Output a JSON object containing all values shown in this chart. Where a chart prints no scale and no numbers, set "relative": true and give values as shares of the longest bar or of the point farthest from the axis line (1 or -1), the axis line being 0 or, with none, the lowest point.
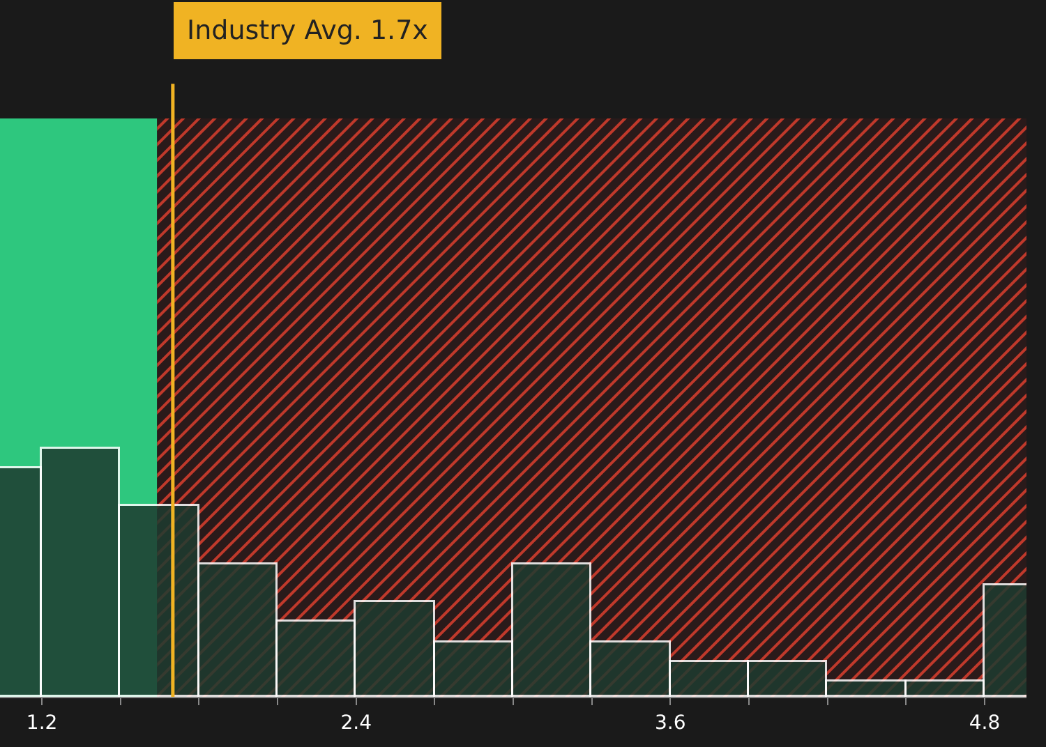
{
  "chart_data": {
    "type": "bar",
    "relative": true,
    "color": "#1e3b30",
    "x": [
      1.05,
      1.35,
      1.65,
      1.95,
      2.25,
      2.55,
      2.85,
      3.15,
      3.45,
      3.75,
      4.05,
      4.35,
      4.65,
      4.95
    ],
    "values": [
      0.92,
      1,
      0.77,
      0.53,
      0.3,
      0.38,
      0.22,
      0.53,
      0.22,
      0.14,
      0.14,
      0.06,
      0.06,
      0.45
    ],
    "xlim": [
      1.04,
      4.96
    ],
    "xticks": [
      1.2,
      {
        "value": 1.5,
        "label": null
      },
      {
        "value": 1.8,
        "label": null
      },
      {
        "value": 2.1,
        "label": null
      },
      2.4,
      {
        "value": 2.7,
        "label": null
      },
      {
        "value": 3.0,
        "label": null
      },
      {
        "value": 3.3,
        "label": null
      },
      3.6,
      {
        "value": 3.9,
        "label": null
      },
      {
        "value": 4.2,
        "label": null
      },
      {
        "value": 4.5,
        "label": null
      },
      4.8
    ],
    "bands": [
      {
        "axis": "x",
        "from": 1.04,
        "to": 1.64,
        "color": "#2ec77e"
      },
      {
        "axis": "x",
        "from": 1.64,
        "to": 4.96,
        "color": "#c0392b"
      }
    ],
    "ref_lines": [
      {
        "axis": "x",
        "value": 1.7,
        "label": "Industry Avg. 1.7x",
        "color": "#f0b323"
      }
    ]
  }
}
